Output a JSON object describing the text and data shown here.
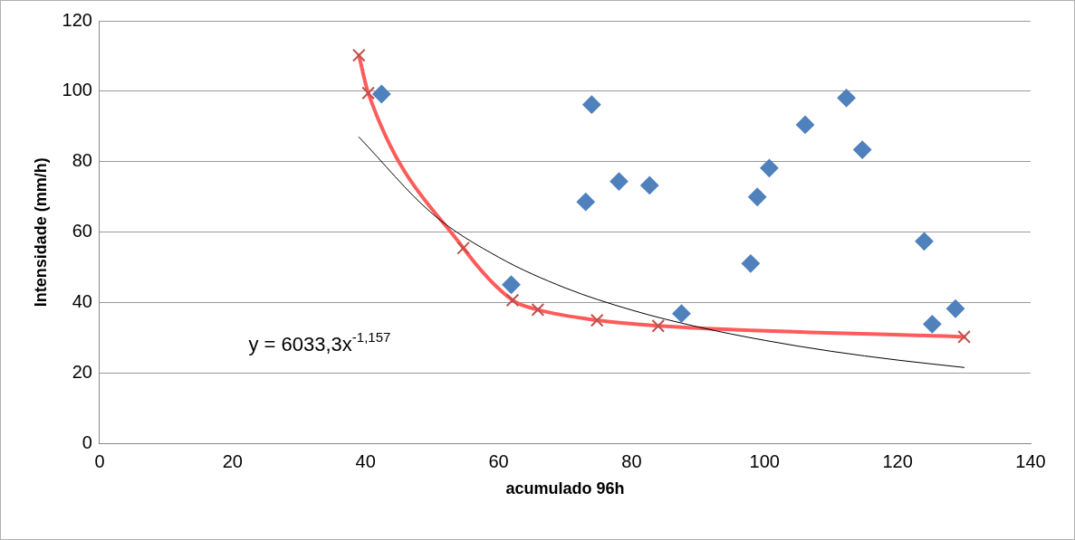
{
  "chart_data": {
    "type": "scatter",
    "xlabel": "acumulado 96h",
    "ylabel": "Intensidade (mm/h)",
    "xlim": [
      0,
      140
    ],
    "xticks": [
      0,
      20,
      40,
      60,
      80,
      100,
      120,
      140
    ],
    "ylim": [
      0,
      120
    ],
    "yticks": [
      0,
      20,
      40,
      60,
      80,
      100,
      120
    ],
    "grid": "y",
    "legend": false,
    "annotations": [
      "y = 6033,3x$^{-1,157}$"
    ],
    "series": [
      {
        "color": "#4f81bd",
        "marker": "diamond",
        "x": [
          42.4,
          74.0,
          73.1,
          78.1,
          82.7,
          61.9,
          87.5,
          97.9,
          98.9,
          100.7,
          106.1,
          112.3,
          114.7,
          124.0,
          125.2,
          128.7
        ],
        "values": [
          99.2,
          96.2,
          68.6,
          74.4,
          73.3,
          45.1,
          36.9,
          51.1,
          70.0,
          78.2,
          90.5,
          98.1,
          83.4,
          57.4,
          33.9,
          38.3
        ]
      },
      {
        "type": "line",
        "color": "#ff5b5b",
        "marker": "cross",
        "x": [
          39.0,
          40.4,
          54.7,
          62.1,
          65.9,
          74.8,
          84.0,
          130.0
        ],
        "values": [
          110.2,
          99.5,
          55.5,
          40.7,
          38.0,
          35.0,
          33.4,
          30.3
        ]
      },
      {
        "type": "line",
        "color": "#000000",
        "marker": "none",
        "x": [
          39,
          50,
          60,
          70,
          80,
          90,
          100,
          110,
          120,
          130
        ],
        "values": [
          87.0,
          65.3,
          52.9,
          44.2,
          37.9,
          33.1,
          29.3,
          26.2,
          23.7,
          21.6
        ]
      }
    ]
  }
}
